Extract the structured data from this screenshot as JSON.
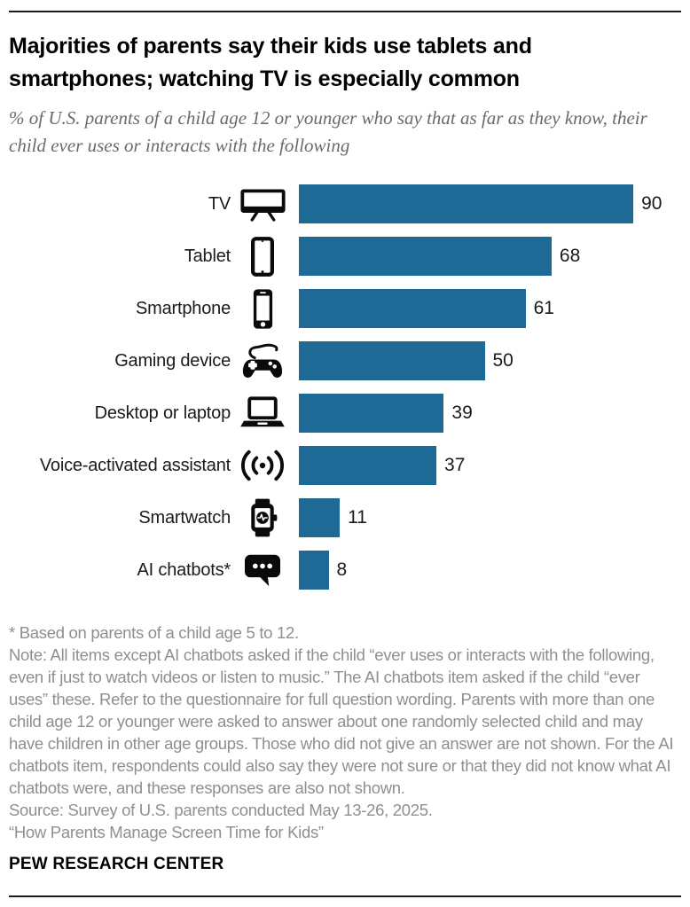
{
  "header": {
    "title": "Majorities of parents say their kids use tablets and smartphones; watching TV is especially common",
    "subtitle": "% of U.S. parents of a child age 12 or younger who say that as far as they know, their child ever uses or interacts with the following"
  },
  "chart_data": {
    "type": "bar",
    "orientation": "horizontal",
    "title": "Majorities of parents say their kids use tablets and smartphones; watching TV is especially common",
    "subtitle": "% of U.S. parents of a child age 12 or younger who say that as far as they know, their child ever uses or interacts with the following",
    "categories": [
      "TV",
      "Tablet",
      "Smartphone",
      "Gaming device",
      "Desktop or laptop",
      "Voice-activated assistant",
      "Smartwatch",
      "AI chatbots*"
    ],
    "values": [
      90,
      68,
      61,
      50,
      39,
      37,
      11,
      8
    ],
    "icons": [
      "tv-icon",
      "tablet-icon",
      "smartphone-icon",
      "gaming-device-icon",
      "laptop-icon",
      "voice-assistant-icon",
      "smartwatch-icon",
      "chat-bubble-icon"
    ],
    "bar_color": "#1d6a96",
    "icon_color": "#0a0a0a",
    "value_label_position": "end-of-bar",
    "xlim": [
      0,
      100
    ],
    "grid": false,
    "legend": "none"
  },
  "notes": {
    "footnote": "* Based on parents of a child age 5 to 12.",
    "note": "Note: All items except AI chatbots asked if the child “ever uses or interacts with the following, even if just to watch videos or listen to music.” The AI chatbots item asked if the child “ever uses” these. Refer to the questionnaire for full question wording. Parents with more than one child age 12 or younger were asked to answer about one randomly selected child and may have children in other age groups. Those who did not give an answer are not shown. For the AI chatbots item, respondents could also say they were not sure or that they did not know what AI chatbots were, and these responses are also not shown.",
    "source": "Source: Survey of U.S. parents conducted May 13-26, 2025.",
    "report": "“How Parents Manage Screen Time for Kids”"
  },
  "brand": "PEW RESEARCH CENTER"
}
